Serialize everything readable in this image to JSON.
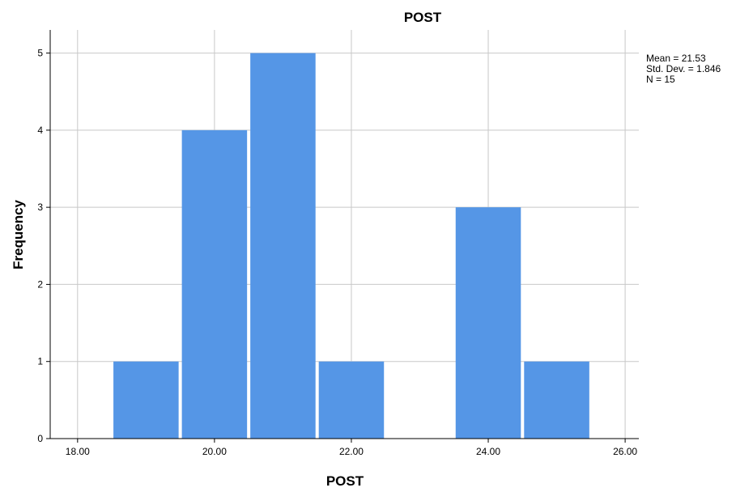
{
  "chart_data": {
    "type": "bar",
    "subtype": "histogram",
    "title": "POST",
    "xlabel": "POST",
    "ylabel": "Frequency",
    "bin_width": 1,
    "bins": [
      {
        "start": 18.5,
        "end": 19.5,
        "count": 1
      },
      {
        "start": 19.5,
        "end": 20.5,
        "count": 4
      },
      {
        "start": 20.5,
        "end": 21.5,
        "count": 5
      },
      {
        "start": 21.5,
        "end": 22.5,
        "count": 1
      },
      {
        "start": 22.5,
        "end": 23.5,
        "count": 0
      },
      {
        "start": 23.5,
        "end": 24.5,
        "count": 3
      },
      {
        "start": 24.5,
        "end": 25.5,
        "count": 1
      }
    ],
    "xlim": [
      17.6,
      26.2
    ],
    "ylim": [
      0,
      5.3
    ],
    "xticks": [
      "18.00",
      "20.00",
      "22.00",
      "24.00",
      "26.00"
    ],
    "xtick_values": [
      18,
      20,
      22,
      24,
      26
    ],
    "yticks": [
      "0",
      "1",
      "2",
      "3",
      "4",
      "5"
    ],
    "ytick_values": [
      0,
      1,
      2,
      3,
      4,
      5
    ],
    "grid": true,
    "bar_color": "#5596e6",
    "grid_color": "#c8c8c8",
    "stats": {
      "mean": "Mean = 21.53",
      "std": "Std. Dev. = 1.846",
      "n": "N = 15"
    },
    "legend_placement": "top-right"
  }
}
